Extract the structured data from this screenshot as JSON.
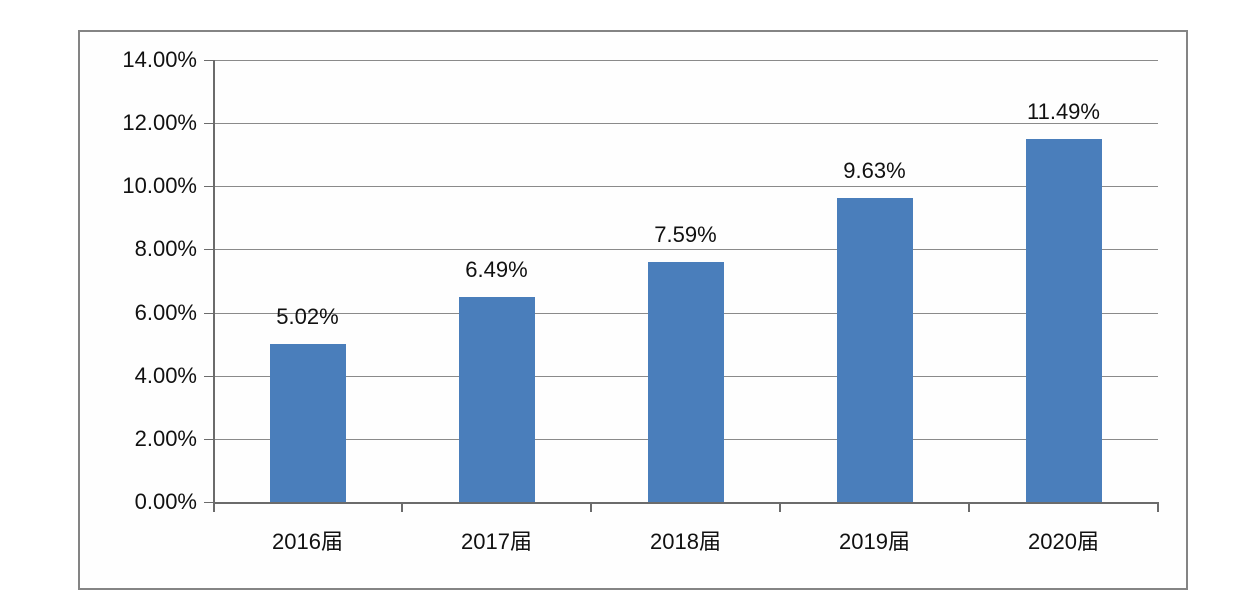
{
  "chart_data": {
    "type": "bar",
    "title": "",
    "xlabel": "",
    "ylabel": "",
    "categories": [
      "2016届",
      "2017届",
      "2018届",
      "2019届",
      "2020届"
    ],
    "values": [
      5.02,
      6.49,
      7.59,
      9.63,
      11.49
    ],
    "data_labels": [
      "5.02%",
      "6.49%",
      "7.59%",
      "9.63%",
      "11.49%"
    ],
    "y_tick_labels": [
      "0.00%",
      "2.00%",
      "4.00%",
      "6.00%",
      "8.00%",
      "10.00%",
      "12.00%",
      "14.00%"
    ],
    "ylim": [
      0,
      14
    ],
    "y_tick_step": 2,
    "grid": true,
    "legend_position": "none",
    "colors": {
      "bar_fill": "#4a7ebb",
      "gridline": "#8a8a8a",
      "axis": "#6b6b6b",
      "frame_border": "#848484",
      "text": "#111111",
      "background": "#ffffff"
    }
  }
}
